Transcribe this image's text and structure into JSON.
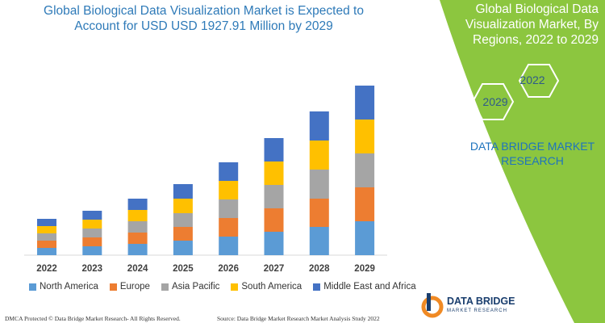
{
  "header": {
    "title": "Global Biological Data Visualization Market is Expected to Account for USD USD 1927.91 Million by 2029"
  },
  "panel": {
    "title": "Global Biological Data Visualization Market, By Regions, 2022 to 2029",
    "hex_years": [
      "2022",
      "2029"
    ],
    "brand": "DATA BRIDGE MARKET RESEARCH",
    "background": "#8cc63f"
  },
  "footer": {
    "left": "DMCA Protected © Data Bridge Market Research- All Rights Reserved.",
    "right": "Source: Data Bridge Market Research Market Analysis Study 2022"
  },
  "logo": {
    "name": "DATA BRIDGE",
    "sub": "MARKET RESEARCH"
  },
  "chart_data": {
    "type": "bar",
    "stacked": true,
    "title": "Global Biological Data Visualization Market is Expected to Account for USD USD 1927.91 Million by 2029",
    "categories": [
      "2022",
      "2023",
      "2024",
      "2025",
      "2026",
      "2027",
      "2028",
      "2029"
    ],
    "legend_position": "bottom",
    "grid": false,
    "series": [
      {
        "name": "North America",
        "color": "#5b9bd5",
        "values": [
          9,
          11,
          14,
          18,
          23,
          29,
          35,
          42
        ]
      },
      {
        "name": "Europe",
        "color": "#ed7d31",
        "values": [
          9,
          11,
          14,
          17,
          23,
          29,
          35,
          42
        ]
      },
      {
        "name": "Asia Pacific",
        "color": "#a5a5a5",
        "values": [
          9,
          11,
          14,
          17,
          23,
          29,
          36,
          42
        ]
      },
      {
        "name": "South America",
        "color": "#ffc000",
        "values": [
          9,
          11,
          14,
          18,
          23,
          29,
          36,
          42
        ]
      },
      {
        "name": "Middle East and Africa",
        "color": "#4472c4",
        "values": [
          9,
          11,
          14,
          18,
          23,
          29,
          36,
          42
        ]
      }
    ]
  }
}
